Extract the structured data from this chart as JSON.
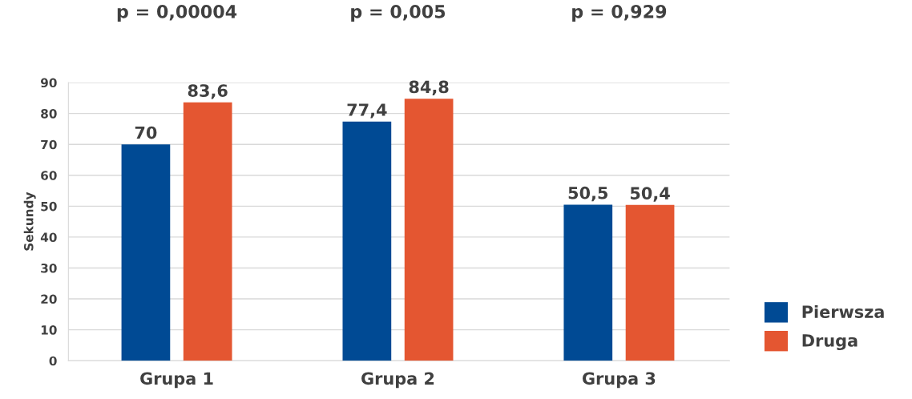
{
  "chart_data": {
    "type": "bar",
    "ylabel": "Sekundy",
    "categories": [
      "Grupa 1",
      "Grupa 2",
      "Grupa 3"
    ],
    "series": [
      {
        "name": "Pierwsza",
        "color": "#004a94",
        "values": [
          70,
          77.4,
          50.5
        ],
        "value_labels": [
          "70",
          "77,4",
          "50,5"
        ]
      },
      {
        "name": "Druga",
        "color": "#e45631",
        "values": [
          83.6,
          84.8,
          50.4
        ],
        "value_labels": [
          "83,6",
          "84,8",
          "50,4"
        ]
      }
    ],
    "ylim": [
      0,
      90
    ],
    "yticks": [
      0,
      10,
      20,
      30,
      40,
      50,
      60,
      70,
      80,
      90
    ],
    "grid": "y",
    "legend": "bottom right",
    "annotations": [
      "p = 0,00004",
      "p = 0,005",
      "p = 0,929"
    ]
  }
}
